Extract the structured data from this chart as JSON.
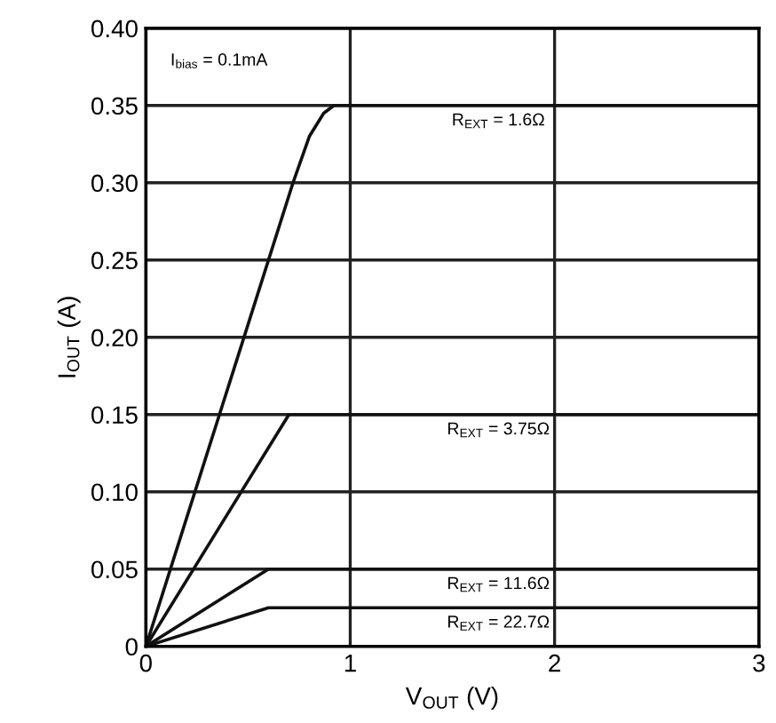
{
  "chart_data": {
    "type": "line",
    "xlabel": "V$_{OUT}$ (V)",
    "ylabel": "I$_{OUT}$ (A)",
    "xlim": [
      0,
      3
    ],
    "xticks": [
      0,
      1,
      2,
      3
    ],
    "ylim": [
      0,
      0.4
    ],
    "yticks": [
      {
        "value": 0,
        "label": "0"
      },
      {
        "value": 0.05,
        "label": "0.05"
      },
      {
        "value": 0.1,
        "label": "0.10"
      },
      {
        "value": 0.15,
        "label": "0.15"
      },
      {
        "value": 0.2,
        "label": "0.20"
      },
      {
        "value": 0.25,
        "label": "0.25"
      },
      {
        "value": 0.3,
        "label": "0.30"
      },
      {
        "value": 0.35,
        "label": "0.35"
      },
      {
        "value": 0.4,
        "label": "0.40"
      }
    ],
    "grid": true,
    "line_style": "solid",
    "marker": "none",
    "series": [
      {
        "name": "R$_{EXT}$ = 1.6Ω",
        "color": "#111111",
        "x": [
          0,
          0.36,
          0.72,
          0.8,
          0.87,
          0.92,
          3
        ],
        "values": [
          0,
          0.15,
          0.3,
          0.33,
          0.345,
          0.35,
          0.35
        ]
      },
      {
        "name": "R$_{EXT}$ = 3.75Ω",
        "color": "#111111",
        "x": [
          0,
          0.7,
          3
        ],
        "values": [
          0,
          0.15,
          0.15
        ]
      },
      {
        "name": "R$_{EXT}$ = 11.6Ω",
        "color": "#111111",
        "x": [
          0,
          0.6,
          3
        ],
        "values": [
          0,
          0.05,
          0.05
        ]
      },
      {
        "name": "R$_{EXT}$ = 22.7Ω",
        "color": "#111111",
        "x": [
          0,
          0.6,
          3
        ],
        "values": [
          0,
          0.025,
          0.025
        ]
      }
    ],
    "annotations": [
      "I$_{bias}$ = 0.1mA"
    ]
  }
}
